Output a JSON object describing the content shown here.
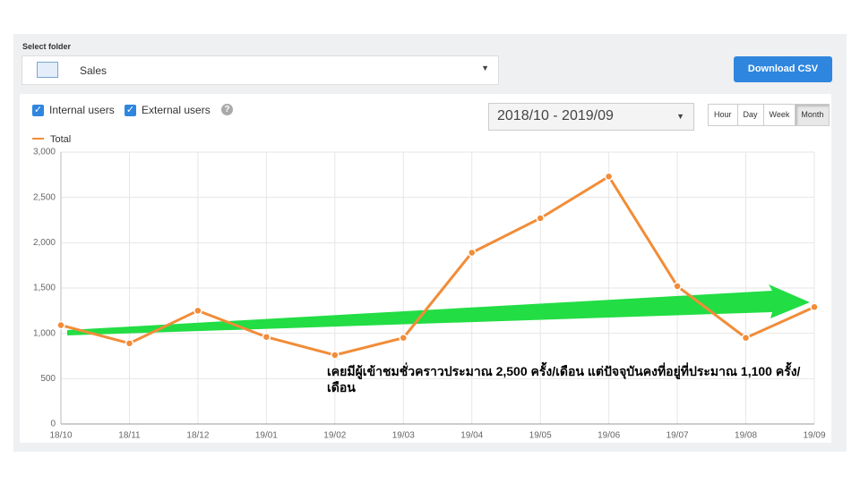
{
  "header": {
    "folder_label": "Select folder",
    "folder": "Sales",
    "download_button": "Download CSV"
  },
  "filters": {
    "checkboxes": [
      "Internal users",
      "External users"
    ],
    "help": "?",
    "date_range": "2018/10 - 2019/09",
    "granularity": [
      "Hour",
      "Day",
      "Week",
      "Month"
    ]
  },
  "chart_data": {
    "type": "line",
    "categories": [
      "18/10",
      "18/11",
      "18/12",
      "19/01",
      "19/02",
      "19/03",
      "19/04",
      "19/05",
      "19/06",
      "19/07",
      "19/08",
      "19/09"
    ],
    "series": [
      {
        "name": "Total",
        "color": "#f28c38",
        "values": [
          1090,
          890,
          1250,
          960,
          760,
          950,
          1890,
          2270,
          2730,
          1520,
          950,
          1290
        ]
      }
    ],
    "ylim": [
      0,
      3000
    ],
    "yticks": [
      0,
      {
        "value": 500,
        "label": "500"
      },
      {
        "value": 1000,
        "label": "1,000"
      },
      {
        "value": 1500,
        "label": "1,500"
      },
      {
        "value": 2000,
        "label": "2,000"
      },
      {
        "value": 2500,
        "label": "2,500"
      },
      {
        "value": 3000,
        "label": "3,000"
      }
    ],
    "grid": true,
    "annotation": "เคยมีผู้เข้าชมชั่วคราวประมาณ 2,500 ครั้ง/เดือน แต่ปัจจุบันคงที่อยู่ที่ประมาณ 1,100 ครั้ง/เดือน"
  }
}
